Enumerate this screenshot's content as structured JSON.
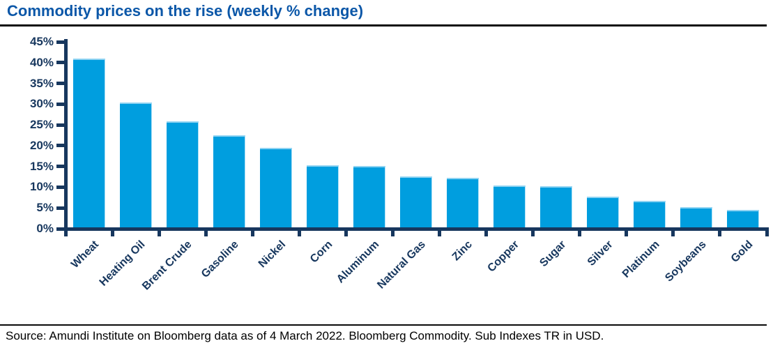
{
  "chart_data": {
    "type": "bar",
    "title": "Commodity prices on the rise (weekly % change)",
    "categories": [
      "Wheat",
      "Heating Oil",
      "Brent Crude",
      "Gasoline",
      "Nickel",
      "Corn",
      "Aluminum",
      "Natural Gas",
      "Zinc",
      "Copper",
      "Sugar",
      "Silver",
      "Platinum",
      "Soybeans",
      "Gold"
    ],
    "values": [
      40.7,
      30.1,
      25.5,
      22.1,
      19.2,
      14.9,
      14.7,
      12.3,
      12.0,
      10.1,
      9.9,
      7.4,
      6.4,
      4.9,
      4.2
    ],
    "xlabel": "",
    "ylabel": "",
    "ylim": [
      0,
      45
    ],
    "ytick_step": 5,
    "ytick_labels": [
      "0%",
      "5%",
      "10%",
      "15%",
      "20%",
      "25%",
      "30%",
      "35%",
      "40%",
      "45%"
    ],
    "grid": false,
    "legend_position": "none",
    "bar_color": "#009EDF",
    "bar_edge_color": "#8FD3F2",
    "axis_color": "#17375E",
    "title_color": "#0B57A8"
  },
  "footer": {
    "source": "Source: Amundi Institute on Bloomberg data as of 4 March 2022. Bloomberg Commodity. Sub Indexes TR in USD."
  }
}
